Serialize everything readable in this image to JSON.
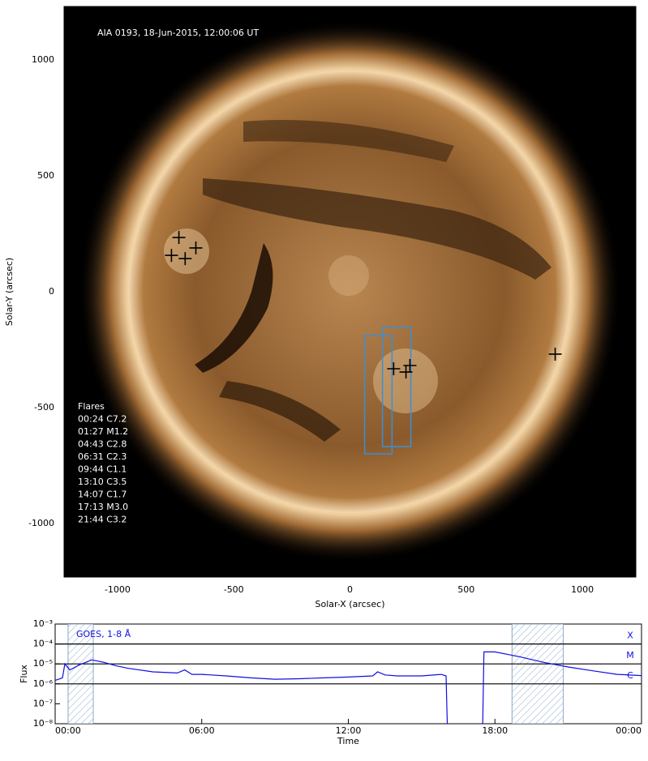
{
  "chart_data": [
    {
      "type": "image",
      "annotation": "AIA 0193, 18-Jun-2015, 12:00:06 UT",
      "xlabel": "Solar-X (arcsec)",
      "ylabel": "Solar-Y (arcsec)",
      "xlim": [
        -1230,
        1230
      ],
      "ylim": [
        -1230,
        1230
      ],
      "xticks": [
        -1000,
        -500,
        0,
        500,
        1000
      ],
      "yticks": [
        -1000,
        -500,
        0,
        500,
        1000
      ],
      "flares_title": "Flares",
      "flares": [
        "00:24 C7.2",
        "01:27 M1.2",
        "04:43 C2.8",
        "06:31 C2.3",
        "09:44 C1.1",
        "13:10 C3.5",
        "14:07 C1.7",
        "17:13 M3.0",
        "21:44 C3.2"
      ],
      "points": {
        "x": [
          -736,
          -768,
          -709,
          -663,
          883,
          188,
          241,
          258
        ],
        "y": [
          234,
          157,
          143,
          189,
          -269,
          -332,
          -346,
          -318
        ],
        "color": "#000000"
      },
      "boxes": [
        {
          "x": [
            63,
            181
          ],
          "y": [
            -189,
            -699
          ]
        },
        {
          "x": [
            140,
            262
          ],
          "y": [
            -154,
            -668
          ]
        }
      ],
      "box_color": "#3a8fd8"
    },
    {
      "type": "line",
      "xlabel": "Time",
      "ylabel": "Flux",
      "legend": "GOES, 1-8 Å",
      "color": "#1010e0",
      "log_y": true,
      "xlim": [
        0,
        24
      ],
      "ylim": [
        1e-08,
        0.001
      ],
      "xticks": [
        {
          "value": 0,
          "label": "00:00"
        },
        {
          "value": 6,
          "label": "06:00"
        },
        {
          "value": 12,
          "label": "12:00"
        },
        {
          "value": 18,
          "label": "18:00"
        },
        {
          "value": 24,
          "label": "00:00"
        }
      ],
      "yticks": [
        {
          "value": 1e-08,
          "label": "10⁻⁸"
        },
        {
          "value": 1e-07,
          "label": "10⁻⁷"
        },
        {
          "value": 1e-06,
          "label": "10⁻⁶"
        },
        {
          "value": 1e-05,
          "label": "10⁻⁵"
        },
        {
          "value": 0.0001,
          "label": "10⁻⁴"
        },
        {
          "value": 0.001,
          "label": "10⁻³"
        }
      ],
      "levels": [
        {
          "value": 0.0001,
          "label": "X"
        },
        {
          "value": 1e-05,
          "label": "M"
        },
        {
          "value": 1e-06,
          "label": "C"
        }
      ],
      "shaded": [
        [
          0.53,
          1.56
        ],
        [
          18.7,
          20.8
        ]
      ],
      "x": [
        0,
        0.3,
        0.4,
        0.6,
        1.0,
        1.5,
        2,
        2.5,
        3,
        4,
        5,
        5.3,
        5.6,
        6,
        7,
        8,
        9,
        10,
        11,
        12,
        13,
        13.2,
        13.5,
        14,
        15,
        15.8,
        16,
        16.05,
        16.8,
        17.5,
        17.55,
        18,
        19,
        20,
        21,
        22,
        23,
        24
      ],
      "values": [
        1.5e-06,
        2e-06,
        1e-05,
        5e-06,
        9e-06,
        1.6e-05,
        1.2e-05,
        8e-06,
        6e-06,
        4e-06,
        3.5e-06,
        5e-06,
        3e-06,
        3e-06,
        2.5e-06,
        2e-06,
        1.7e-06,
        1.8e-06,
        2e-06,
        2.2e-06,
        2.5e-06,
        4e-06,
        2.8e-06,
        2.5e-06,
        2.5e-06,
        3e-06,
        2.5e-06,
        1e-08,
        null,
        1e-08,
        4e-05,
        4e-05,
        2.3e-05,
        1.2e-05,
        7e-06,
        4.5e-06,
        3e-06,
        2.6e-06
      ]
    }
  ]
}
